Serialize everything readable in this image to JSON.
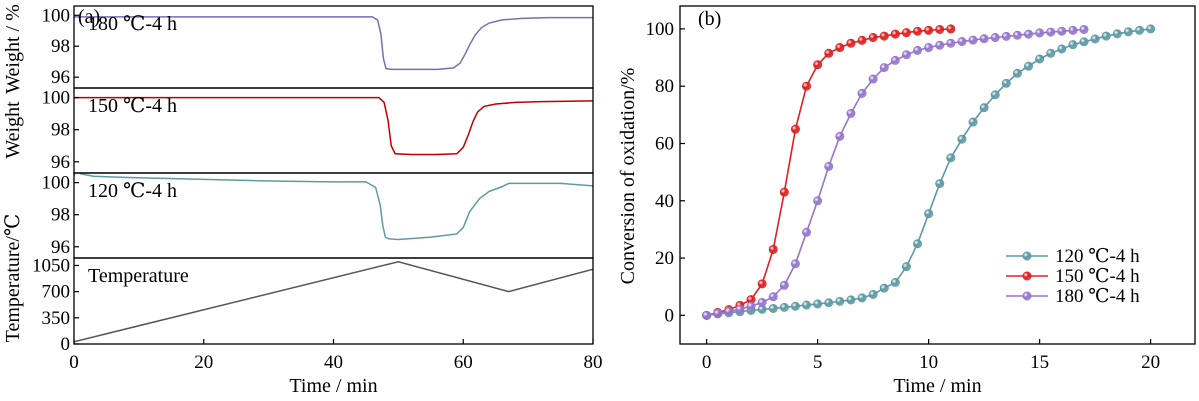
{
  "chart_data": [
    {
      "panel": "(a)",
      "type": "line",
      "xlabel": "Time / min",
      "xlim": [
        0,
        80
      ],
      "x_ticks": [
        "0",
        "20",
        "40",
        "60",
        "80"
      ],
      "subplots": [
        {
          "annotation": "180 ℃-4 h",
          "ylabel": "Weight / %",
          "ylim": [
            95.3,
            100.6
          ],
          "y_ticks": [
            "96",
            "98",
            "100"
          ],
          "color": "#7E6BB0",
          "series": {
            "x": [
              0,
              10,
              20,
              30,
              40,
              46,
              46.8,
              47.3,
              47.7,
              48.1,
              49,
              52,
              56,
              58.5,
              59.5,
              60.3,
              61,
              61.8,
              62.8,
              64,
              66,
              69,
              73,
              80
            ],
            "y": [
              99.9,
              99.9,
              99.9,
              99.9,
              99.9,
              99.9,
              99.7,
              98.8,
              97.2,
              96.55,
              96.5,
              96.5,
              96.5,
              96.6,
              96.9,
              97.5,
              98.1,
              98.7,
              99.2,
              99.5,
              99.7,
              99.8,
              99.85,
              99.85
            ]
          }
        },
        {
          "annotation": "150 ℃-4 h",
          "ylabel": "",
          "ylim": [
            95.3,
            100.6
          ],
          "y_ticks": [
            "96",
            "98",
            "100"
          ],
          "color": "#C00000",
          "series": {
            "x": [
              0,
              10,
              20,
              30,
              40,
              47,
              47.8,
              48.4,
              48.9,
              49.5,
              52,
              56,
              59,
              60,
              60.8,
              61.5,
              62.2,
              63.2,
              65,
              68,
              72,
              80
            ],
            "y": [
              100,
              100,
              100,
              100,
              100,
              100,
              99.7,
              98.6,
              97,
              96.5,
              96.45,
              96.45,
              96.5,
              96.9,
              97.7,
              98.5,
              99.1,
              99.45,
              99.6,
              99.7,
              99.75,
              99.8
            ]
          }
        },
        {
          "annotation": "120 ℃-4 h",
          "ylabel": "",
          "ylim": [
            95.3,
            100.6
          ],
          "y_ticks": [
            "96",
            "98",
            "100"
          ],
          "color": "#5E9AA3",
          "series": {
            "x": [
              0,
              0.3,
              1,
              3,
              6,
              10,
              20,
              30,
              40,
              45,
              46.5,
              47.2,
              47.6,
              48,
              48.5,
              50,
              55,
              59,
              60,
              61,
              62.5,
              64,
              66,
              67,
              70,
              75,
              80
            ],
            "y": [
              100.4,
              100.8,
              100.55,
              100.4,
              100.35,
              100.3,
              100.2,
              100.1,
              100.05,
              100.05,
              99.7,
              98.6,
              97.3,
              96.6,
              96.5,
              96.45,
              96.6,
              96.8,
              97.2,
              98.2,
              99,
              99.45,
              99.75,
              99.95,
              99.95,
              99.95,
              99.8
            ]
          }
        },
        {
          "annotation": "Temperature",
          "ylabel": "Temperature/℃",
          "ylim": [
            0,
            1150
          ],
          "y_ticks": [
            "0",
            "350",
            "700",
            "1050"
          ],
          "color": "#555555",
          "series": {
            "x": [
              0,
              50,
              67,
              80
            ],
            "y": [
              30,
              1100,
              700,
              1000
            ]
          }
        }
      ],
      "shared_ylabel": "Weight"
    },
    {
      "panel": "(b)",
      "type": "scatter",
      "xlabel": "Time / min",
      "ylabel": "Conversion of oxidation/%",
      "xlim": [
        -1.2,
        22
      ],
      "ylim": [
        -10,
        108
      ],
      "x_ticks": [
        "0",
        "5",
        "10",
        "15",
        "20"
      ],
      "y_ticks": [
        "0",
        "20",
        "40",
        "60",
        "80",
        "100"
      ],
      "legend_position": "bottom-right",
      "series": [
        {
          "name": "120 ℃-4 h",
          "color": "#5E9AA3",
          "x": [
            0,
            0.5,
            1,
            1.5,
            2,
            2.5,
            3,
            3.5,
            4,
            4.5,
            5,
            5.5,
            6,
            6.5,
            7,
            7.5,
            8,
            8.5,
            9,
            9.5,
            10,
            10.5,
            11,
            11.5,
            12,
            12.5,
            13,
            13.5,
            14,
            14.5,
            15,
            15.5,
            16,
            16.5,
            17,
            17.5,
            18,
            18.5,
            19,
            19.5,
            20
          ],
          "y": [
            0,
            0.5,
            0.9,
            1.3,
            1.7,
            2.1,
            2.4,
            2.8,
            3.2,
            3.6,
            4,
            4.4,
            4.9,
            5.4,
            6.1,
            7.3,
            9.5,
            11.5,
            17,
            25,
            35.5,
            46,
            55,
            61.5,
            67.5,
            72.5,
            77,
            81,
            84.5,
            87,
            89.5,
            91.5,
            93,
            94.5,
            95.5,
            96.5,
            97.5,
            98.3,
            99,
            99.5,
            100
          ]
        },
        {
          "name": "150 ℃-4 h",
          "color": "#E02020",
          "x": [
            0,
            0.5,
            1,
            1.5,
            2,
            2.5,
            3,
            3.5,
            4,
            4.5,
            5,
            5.5,
            6,
            6.5,
            7,
            7.5,
            8,
            8.5,
            9,
            9.5,
            10,
            10.5,
            11
          ],
          "y": [
            0,
            1,
            2,
            3.5,
            5.5,
            11,
            23,
            43,
            65,
            80,
            87.5,
            91.5,
            93.5,
            95,
            96,
            97,
            97.5,
            98.2,
            98.7,
            99.2,
            99.5,
            99.8,
            100
          ]
        },
        {
          "name": "180 ℃-4 h",
          "color": "#9575CD",
          "x": [
            0,
            0.5,
            1,
            1.5,
            2,
            2.5,
            3,
            3.5,
            4,
            4.5,
            5,
            5.5,
            6,
            6.5,
            7,
            7.5,
            8,
            8.5,
            9,
            9.5,
            10,
            10.5,
            11,
            11.5,
            12,
            12.5,
            13,
            13.5,
            14,
            14.5,
            15,
            15.5,
            16,
            16.5,
            17
          ],
          "y": [
            0,
            0.7,
            1.4,
            2.1,
            3.2,
            4.5,
            6.5,
            10.5,
            18,
            29,
            40,
            52,
            62.5,
            70.5,
            77.5,
            82.5,
            86.5,
            89,
            91,
            92.5,
            93.5,
            94.3,
            95,
            95.6,
            96.1,
            96.6,
            97,
            97.4,
            97.8,
            98.2,
            98.6,
            98.9,
            99.2,
            99.5,
            99.8
          ]
        }
      ]
    }
  ]
}
